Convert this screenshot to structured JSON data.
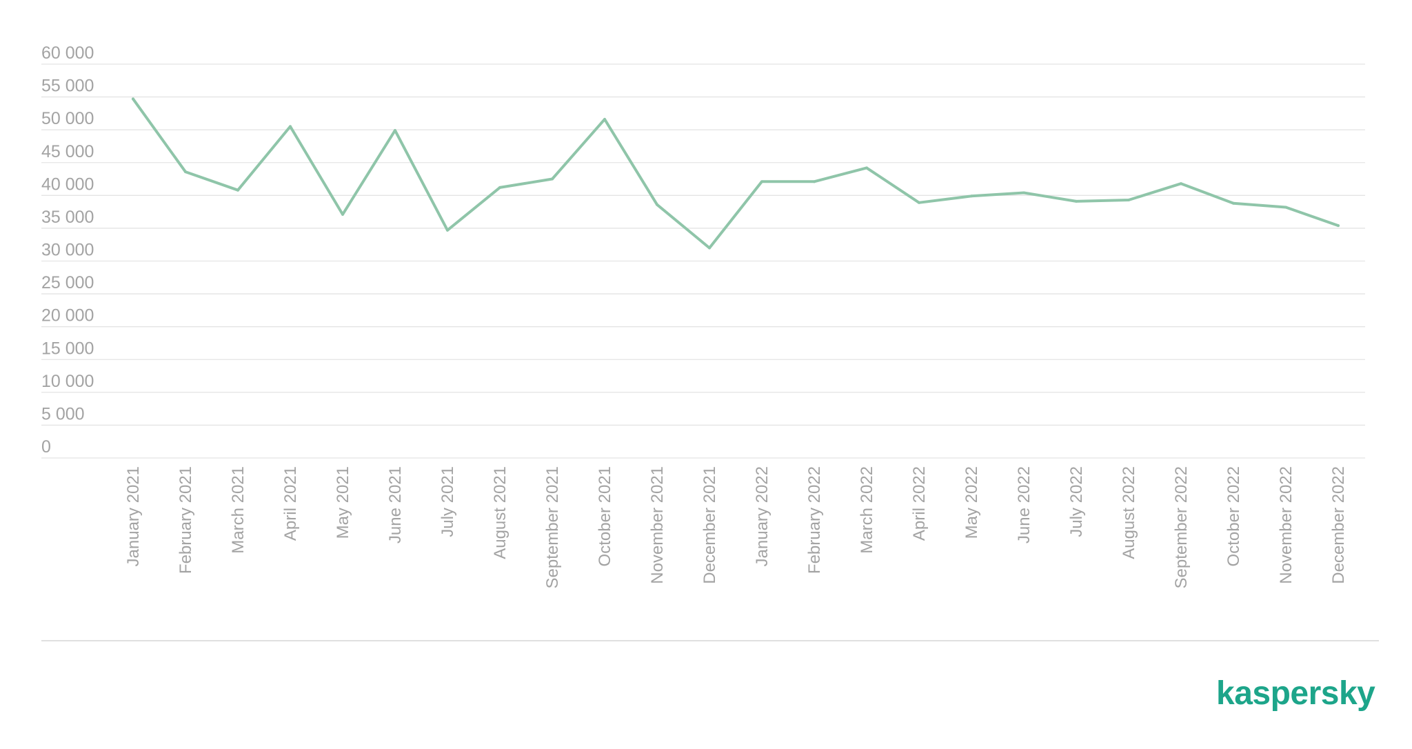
{
  "chart_data": {
    "type": "line",
    "title": "",
    "xlabel": "",
    "ylabel": "",
    "ylim": [
      0,
      60000
    ],
    "yticks": [
      "0",
      "5 000",
      "10 000",
      "15 000",
      "20 000",
      "25 000",
      "30 000",
      "35 000",
      "40 000",
      "45 000",
      "50 000",
      "55 000",
      "60 000"
    ],
    "grid": "horizontal",
    "legend": "none",
    "categories": [
      "January 2021",
      "February 2021",
      "March 2021",
      "April 2021",
      "May 2021",
      "June 2021",
      "July 2021",
      "August 2021",
      "September 2021",
      "October 2021",
      "November 2021",
      "December 2021",
      "January 2022",
      "February 2022",
      "March 2022",
      "April 2022",
      "May 2022",
      "June 2022",
      "July 2022",
      "August 2022",
      "September 2022",
      "October 2022",
      "November 2022",
      "December 2022"
    ],
    "series": [
      {
        "values": [
          54700,
          43600,
          40800,
          50500,
          37100,
          49900,
          34700,
          41200,
          42500,
          51600,
          38600,
          32000,
          42100,
          42100,
          44200,
          38900,
          39900,
          40400,
          39100,
          39300,
          41800,
          38800,
          38200,
          35400
        ]
      }
    ],
    "colors": {
      "line": "#8fc5a9",
      "grid": "#e4e4e4",
      "text": "#a3a3a3"
    }
  },
  "brand": {
    "logo_text": "kaspersky",
    "color": "#1da58a"
  }
}
